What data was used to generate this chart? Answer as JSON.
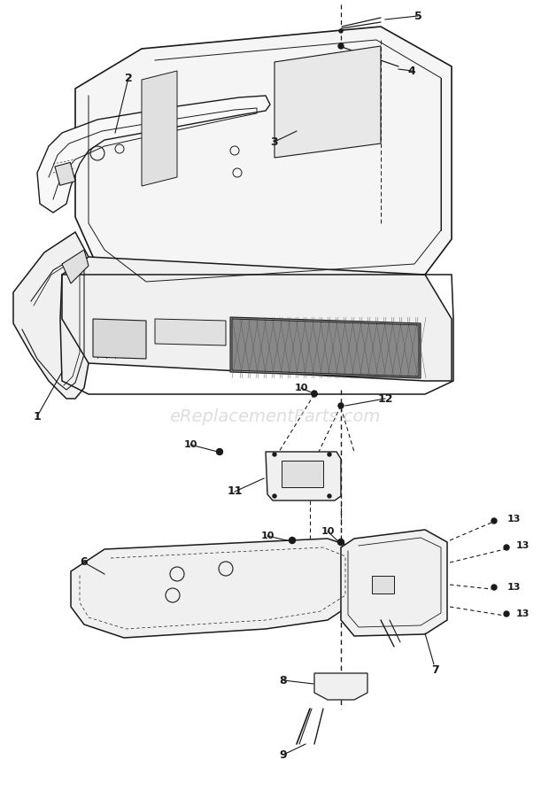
{
  "bg_color": "#ffffff",
  "line_color": "#1a1a1a",
  "watermark": "eReplacementParts.com",
  "watermark_color": "#c8c8c8",
  "fig_width": 6.2,
  "fig_height": 9.02,
  "dpi": 100
}
